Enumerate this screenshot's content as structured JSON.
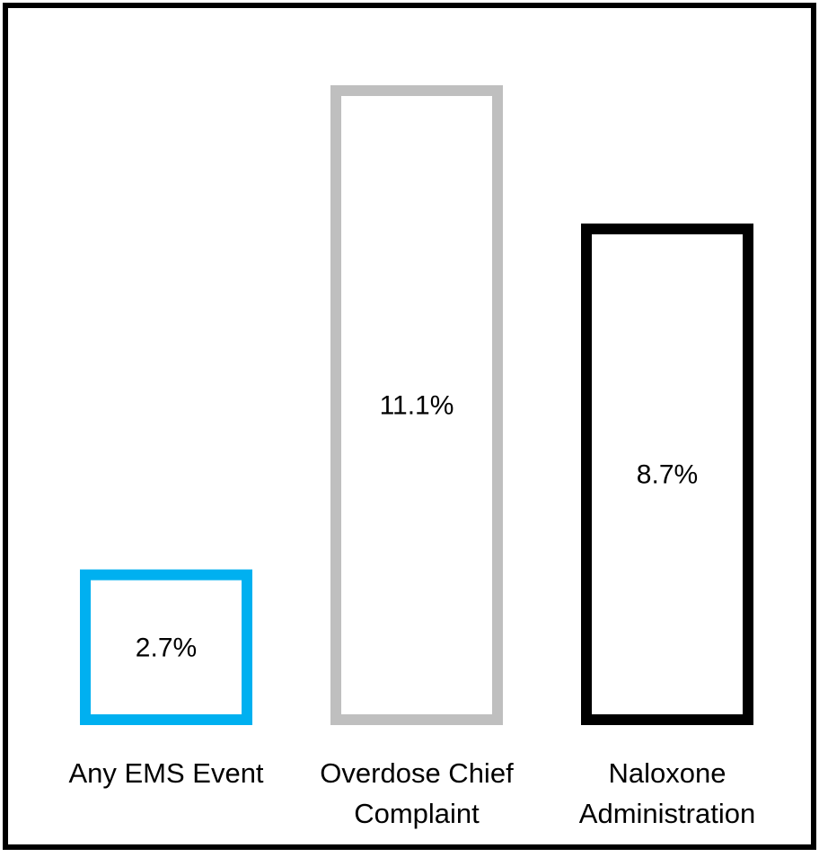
{
  "chart_data": {
    "type": "bar",
    "categories": [
      [
        "Any EMS Event"
      ],
      [
        "Overdose Chief",
        "Complaint"
      ],
      [
        "Naloxone",
        "Administration"
      ]
    ],
    "values": [
      2.7,
      11.1,
      8.7
    ],
    "value_labels": [
      "2.7%",
      "11.1%",
      "8.7%"
    ],
    "bar_colors": [
      "#00b0f0",
      "#bfbfbf",
      "#000000"
    ],
    "bar_fill": "#ffffff",
    "title": "",
    "xlabel": "",
    "ylabel": "",
    "grid": false,
    "legend": "none",
    "frame_color": "#000000"
  }
}
